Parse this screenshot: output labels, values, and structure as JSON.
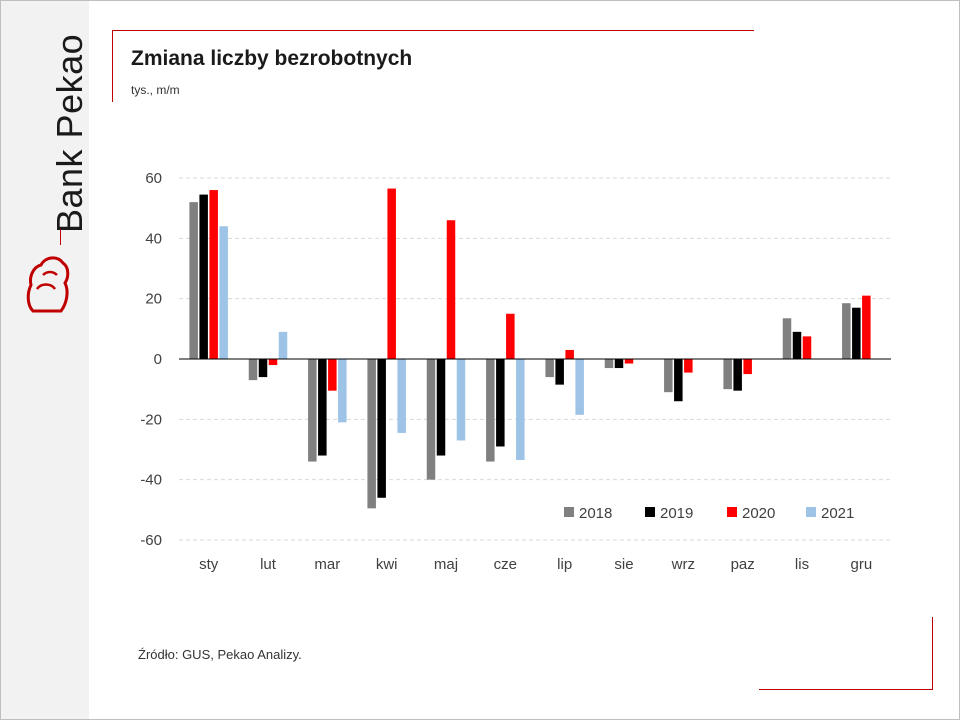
{
  "brand": {
    "name": "Bank Pekao",
    "logo_icon": "pekao-bison-icon",
    "accent": "#c00000"
  },
  "title": "Zmiana liczby bezrobotnych",
  "subtitle": "tys., m/m",
  "source": "Źródło: GUS, Pekao Analizy.",
  "chart_data": {
    "type": "bar",
    "categories": [
      "sty",
      "lut",
      "mar",
      "kwi",
      "maj",
      "cze",
      "lip",
      "sie",
      "wrz",
      "paz",
      "lis",
      "gru"
    ],
    "ylim": [
      -60,
      60
    ],
    "yticks": [
      60,
      40,
      20,
      0,
      -20,
      -40,
      -60
    ],
    "ytick_labels": [
      "60",
      "40",
      "20",
      "0",
      "-20",
      "-40",
      "-60"
    ],
    "grid": true,
    "legend_position": "bottom-right",
    "series": [
      {
        "name": "2018",
        "color": "#808080",
        "values": [
          52,
          -7,
          -34,
          -49.5,
          -40,
          -34,
          -6,
          -3,
          -11,
          -10,
          13.5,
          18.5
        ]
      },
      {
        "name": "2019",
        "color": "#000000",
        "values": [
          54.5,
          -6,
          -32,
          -46,
          -32,
          -29,
          -8.5,
          -3,
          -14,
          -10.5,
          9,
          17
        ]
      },
      {
        "name": "2020",
        "color": "#ff0000",
        "values": [
          56,
          -2,
          -10.5,
          56.5,
          46,
          15,
          3,
          -1.5,
          -4.5,
          -5,
          7.5,
          21
        ]
      },
      {
        "name": "2021",
        "color": "#9dc3e6",
        "values": [
          44,
          9,
          -21,
          -24.5,
          -27,
          -33.5,
          -18.5,
          null,
          null,
          null,
          null,
          null
        ]
      }
    ]
  }
}
